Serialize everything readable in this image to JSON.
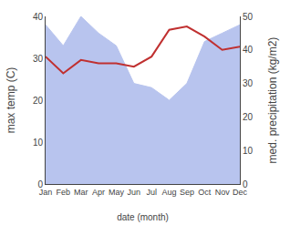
{
  "chart_data": {
    "type": "line",
    "xlabel": "date (month)",
    "ylabel": "max temp (C)",
    "y2label": "med. precipitation (kg/m2)",
    "categories": [
      "Jan",
      "Feb",
      "Mar",
      "Apr",
      "May",
      "Jun",
      "Jul",
      "Aug",
      "Sep",
      "Oct",
      "Nov",
      "Dec"
    ],
    "series": [
      {
        "type": "area",
        "color": "#b8c4ee",
        "values": [
          38,
          33,
          40,
          36,
          33,
          24,
          23,
          20,
          24,
          34,
          36,
          38
        ]
      },
      {
        "type": "line",
        "color": "#c03030",
        "axis": "y2",
        "values": [
          38,
          33,
          37,
          36,
          36,
          35,
          38,
          46,
          47,
          44,
          40,
          41
        ]
      }
    ],
    "ylim": [
      0,
      40
    ],
    "yticks": [
      0,
      10,
      20,
      30,
      40
    ],
    "y2lim": [
      0,
      50
    ],
    "y2ticks": [
      0,
      10,
      20,
      30,
      40,
      50
    ],
    "grid": false
  }
}
